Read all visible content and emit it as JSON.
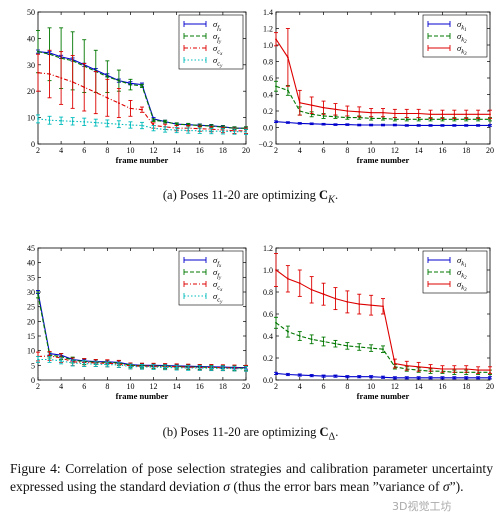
{
  "chart_data": [
    {
      "type": "line",
      "panel": "a-left",
      "xlabel": "frame number",
      "ylabel": "",
      "xlim": [
        2,
        20
      ],
      "ylim": [
        0,
        50
      ],
      "xticks": [
        2,
        4,
        6,
        8,
        10,
        12,
        14,
        16,
        18,
        20
      ],
      "yticks": [
        0,
        10,
        20,
        30,
        40,
        50
      ],
      "legend_position": "top-right",
      "x": [
        2,
        3,
        4,
        5,
        6,
        7,
        8,
        9,
        10,
        11,
        12,
        13,
        14,
        15,
        16,
        17,
        18,
        19,
        20
      ],
      "series": [
        {
          "name": "σ_fx",
          "legend_main": "σ",
          "legend_sub": "f",
          "legend_subsub": "x",
          "color": "#0000cc",
          "style": "solid",
          "values": [
            35,
            34.5,
            33,
            32,
            30,
            28,
            26,
            24,
            23,
            22.5,
            9.5,
            8.5,
            7.5,
            7.3,
            7.1,
            6.9,
            6.5,
            6,
            6
          ],
          "errors": [
            0.6,
            0.6,
            0.6,
            0.6,
            0.6,
            0.6,
            0.6,
            0.6,
            0.6,
            0.6,
            0.5,
            0.5,
            0.5,
            0.5,
            0.5,
            0.5,
            0.5,
            0.5,
            0.5
          ]
        },
        {
          "name": "σ_fy",
          "legend_main": "σ",
          "legend_sub": "f",
          "legend_subsub": "y",
          "color": "#007700",
          "style": "dashed",
          "values": [
            35,
            34,
            32.5,
            31.5,
            29.5,
            27.5,
            25.5,
            24,
            22.5,
            22,
            9,
            8.5,
            7.5,
            7.3,
            7,
            6.8,
            6.4,
            6,
            6
          ],
          "errors": [
            8,
            10,
            11.5,
            11,
            10,
            8,
            6,
            4,
            2,
            0.6,
            0.5,
            0.5,
            0.5,
            0.5,
            0.5,
            0.5,
            0.5,
            0.5,
            0.5
          ]
        },
        {
          "name": "σ_cx",
          "legend_main": "σ",
          "legend_sub": "c",
          "legend_subsub": "x",
          "color": "#dd0000",
          "style": "dashdot",
          "values": [
            27,
            26.5,
            25,
            23.5,
            21.5,
            19.5,
            17.5,
            15.5,
            13.5,
            13,
            7,
            6.5,
            6,
            6,
            5.8,
            5.6,
            5.3,
            5,
            5
          ],
          "errors": [
            7,
            9,
            10,
            10,
            9,
            8,
            7,
            5.5,
            3,
            1,
            1,
            1,
            1,
            1,
            1,
            1,
            1,
            1,
            1
          ]
        },
        {
          "name": "σ_cy",
          "legend_main": "σ",
          "legend_sub": "c",
          "legend_subsub": "y",
          "color": "#00bbbb",
          "style": "dotted",
          "values": [
            9.5,
            9,
            8.8,
            8.6,
            8.4,
            8.1,
            7.8,
            7.5,
            7.2,
            7,
            6,
            5.5,
            5.3,
            5.1,
            5,
            4.9,
            4.8,
            4.7,
            4.6
          ],
          "errors": [
            1.5,
            1.5,
            1.4,
            1.4,
            1.4,
            1.3,
            1.3,
            1.3,
            1.2,
            1.2,
            1,
            1,
            1,
            1,
            1,
            1,
            1,
            1,
            1
          ]
        }
      ]
    },
    {
      "type": "line",
      "panel": "a-right",
      "xlabel": "frame number",
      "ylabel": "",
      "xlim": [
        2,
        20
      ],
      "ylim": [
        -0.2,
        1.4
      ],
      "xticks": [
        2,
        4,
        6,
        8,
        10,
        12,
        14,
        16,
        18,
        20
      ],
      "yticks": [
        -0.2,
        0,
        0.2,
        0.4,
        0.6,
        0.8,
        1,
        1.2,
        1.4
      ],
      "ytick_labels": [
        "−0.2",
        "0.0",
        "0.2",
        "0.4",
        "0.6",
        "0.8",
        "1.0",
        "1.2",
        "1.4"
      ],
      "legend_position": "top-right",
      "x": [
        2,
        3,
        4,
        5,
        6,
        7,
        8,
        9,
        10,
        11,
        12,
        13,
        14,
        15,
        16,
        17,
        18,
        19,
        20
      ],
      "series": [
        {
          "name": "σ_k1",
          "legend_main": "σ",
          "legend_sub": "k",
          "legend_subsub": "1",
          "color": "#0000cc",
          "style": "solid",
          "values": [
            0.07,
            0.06,
            0.05,
            0.045,
            0.04,
            0.035,
            0.035,
            0.03,
            0.03,
            0.03,
            0.03,
            0.025,
            0.025,
            0.025,
            0.025,
            0.025,
            0.025,
            0.025,
            0.025
          ],
          "errors": [
            0.01,
            0.01,
            0.01,
            0.01,
            0.01,
            0.01,
            0.01,
            0.01,
            0.01,
            0.01,
            0.01,
            0.01,
            0.01,
            0.01,
            0.01,
            0.01,
            0.01,
            0.01,
            0.01
          ]
        },
        {
          "name": "σ_k2",
          "legend_main": "σ",
          "legend_sub": "k",
          "legend_subsub": "2",
          "color": "#007700",
          "style": "dashed",
          "values": [
            0.5,
            0.45,
            0.2,
            0.16,
            0.14,
            0.13,
            0.12,
            0.12,
            0.11,
            0.11,
            0.1,
            0.1,
            0.1,
            0.1,
            0.1,
            0.1,
            0.1,
            0.1,
            0.1
          ],
          "errors": [
            0.06,
            0.06,
            0.05,
            0.03,
            0.03,
            0.02,
            0.02,
            0.02,
            0.02,
            0.02,
            0.02,
            0.02,
            0.02,
            0.02,
            0.02,
            0.02,
            0.02,
            0.02,
            0.02
          ]
        },
        {
          "name": "σ_k3",
          "legend_main": "σ",
          "legend_sub": "k",
          "legend_subsub": "3",
          "color": "#dd0000",
          "style": "solid",
          "values": [
            1.07,
            0.85,
            0.3,
            0.27,
            0.24,
            0.22,
            0.2,
            0.19,
            0.18,
            0.18,
            0.17,
            0.17,
            0.17,
            0.16,
            0.16,
            0.16,
            0.16,
            0.16,
            0.16
          ],
          "errors": [
            0.08,
            0.35,
            0.15,
            0.1,
            0.08,
            0.07,
            0.06,
            0.06,
            0.05,
            0.05,
            0.05,
            0.05,
            0.05,
            0.05,
            0.05,
            0.05,
            0.05,
            0.05,
            0.05
          ]
        }
      ]
    },
    {
      "type": "line",
      "panel": "b-left",
      "xlabel": "frame number",
      "ylabel": "",
      "xlim": [
        2,
        20
      ],
      "ylim": [
        0,
        45
      ],
      "xticks": [
        2,
        4,
        6,
        8,
        10,
        12,
        14,
        16,
        18,
        20
      ],
      "yticks": [
        0,
        5,
        10,
        15,
        20,
        25,
        30,
        35,
        40,
        45
      ],
      "legend_position": "top-right",
      "x": [
        2,
        3,
        4,
        5,
        6,
        7,
        8,
        9,
        10,
        11,
        12,
        13,
        14,
        15,
        16,
        17,
        18,
        19,
        20
      ],
      "series": [
        {
          "name": "σ_fx",
          "legend_main": "σ",
          "legend_sub": "f",
          "legend_subsub": "x",
          "color": "#0000cc",
          "style": "solid",
          "values": [
            30,
            9,
            8.5,
            7,
            6.5,
            6.3,
            6.2,
            6,
            5.2,
            5,
            5,
            4.9,
            4.8,
            4.7,
            4.6,
            4.5,
            4.4,
            4.3,
            4.2
          ],
          "errors": [
            0.5,
            0.5,
            0.5,
            0.5,
            0.5,
            0.5,
            0.5,
            0.5,
            0.5,
            0.5,
            0.5,
            0.5,
            0.5,
            0.5,
            0.5,
            0.5,
            0.5,
            0.5,
            0.5
          ]
        },
        {
          "name": "σ_fy",
          "legend_main": "σ",
          "legend_sub": "f",
          "legend_subsub": "y",
          "color": "#007700",
          "style": "dashed",
          "values": [
            29,
            8.5,
            8,
            6.8,
            6.3,
            6.1,
            6,
            5.8,
            5,
            4.9,
            4.8,
            4.7,
            4.6,
            4.5,
            4.4,
            4.3,
            4.2,
            4.1,
            4
          ],
          "errors": [
            1,
            1,
            1,
            1,
            1,
            0.8,
            0.8,
            0.8,
            0.8,
            0.8,
            0.8,
            0.8,
            0.8,
            0.8,
            0.8,
            0.8,
            0.8,
            0.8,
            0.8
          ]
        },
        {
          "name": "σ_cx",
          "legend_main": "σ",
          "legend_sub": "c",
          "legend_subsub": "x",
          "color": "#dd0000",
          "style": "dashdot",
          "values": [
            8,
            8.2,
            7.5,
            6.2,
            6,
            5.8,
            5.7,
            5.5,
            4.8,
            4.7,
            4.7,
            4.6,
            4.5,
            4.4,
            4.3,
            4.3,
            4.2,
            4.1,
            4
          ],
          "errors": [
            1.5,
            1.5,
            1.5,
            1.3,
            1.3,
            1.2,
            1.2,
            1.2,
            1,
            1,
            1,
            1,
            1,
            1,
            1,
            1,
            1,
            1,
            1
          ]
        },
        {
          "name": "σ_cy",
          "legend_main": "σ",
          "legend_sub": "c",
          "legend_subsub": "y",
          "color": "#00bbbb",
          "style": "dotted",
          "values": [
            7,
            7,
            6.5,
            5.8,
            5.6,
            5.4,
            5.3,
            5.1,
            4.6,
            4.5,
            4.4,
            4.3,
            4.2,
            4.1,
            4.1,
            4,
            4,
            3.9,
            3.8
          ],
          "errors": [
            1,
            1,
            1,
            1,
            1,
            0.8,
            0.8,
            0.8,
            0.8,
            0.8,
            0.8,
            0.8,
            0.8,
            0.8,
            0.8,
            0.8,
            0.8,
            0.8,
            0.8
          ]
        }
      ]
    },
    {
      "type": "line",
      "panel": "b-right",
      "xlabel": "frame number",
      "ylabel": "",
      "xlim": [
        2,
        20
      ],
      "ylim": [
        0,
        1.2
      ],
      "xticks": [
        2,
        4,
        6,
        8,
        10,
        12,
        14,
        16,
        18,
        20
      ],
      "yticks": [
        0,
        0.2,
        0.4,
        0.6,
        0.8,
        1,
        1.2
      ],
      "ytick_labels": [
        "0.0",
        "0.2",
        "0.4",
        "0.6",
        "0.8",
        "1.0",
        "1.2"
      ],
      "legend_position": "top-right",
      "x": [
        2,
        3,
        4,
        5,
        6,
        7,
        8,
        9,
        10,
        11,
        12,
        13,
        14,
        15,
        16,
        17,
        18,
        19,
        20
      ],
      "series": [
        {
          "name": "σ_k1",
          "legend_main": "σ",
          "legend_sub": "k",
          "legend_subsub": "1",
          "color": "#0000cc",
          "style": "solid",
          "values": [
            0.06,
            0.05,
            0.045,
            0.04,
            0.035,
            0.035,
            0.03,
            0.03,
            0.03,
            0.025,
            0.02,
            0.02,
            0.02,
            0.02,
            0.02,
            0.02,
            0.02,
            0.02,
            0.02
          ],
          "errors": [
            0.01,
            0.01,
            0.01,
            0.01,
            0.01,
            0.01,
            0.01,
            0.01,
            0.01,
            0.01,
            0.01,
            0.01,
            0.01,
            0.01,
            0.01,
            0.01,
            0.01,
            0.01,
            0.01
          ]
        },
        {
          "name": "σ_k2",
          "legend_main": "σ",
          "legend_sub": "k",
          "legend_subsub": "2",
          "color": "#007700",
          "style": "dashed",
          "values": [
            0.52,
            0.44,
            0.4,
            0.37,
            0.35,
            0.33,
            0.31,
            0.3,
            0.29,
            0.28,
            0.12,
            0.1,
            0.09,
            0.08,
            0.08,
            0.07,
            0.07,
            0.07,
            0.07
          ],
          "errors": [
            0.05,
            0.05,
            0.04,
            0.04,
            0.04,
            0.03,
            0.03,
            0.03,
            0.03,
            0.03,
            0.02,
            0.02,
            0.02,
            0.02,
            0.02,
            0.02,
            0.02,
            0.02,
            0.02
          ]
        },
        {
          "name": "σ_k3",
          "legend_main": "σ",
          "legend_sub": "k",
          "legend_subsub": "3",
          "color": "#dd0000",
          "style": "solid",
          "values": [
            1,
            0.92,
            0.88,
            0.82,
            0.78,
            0.74,
            0.71,
            0.69,
            0.68,
            0.67,
            0.15,
            0.13,
            0.12,
            0.11,
            0.1,
            0.1,
            0.1,
            0.09,
            0.09
          ],
          "errors": [
            0.15,
            0.12,
            0.12,
            0.12,
            0.1,
            0.1,
            0.1,
            0.09,
            0.09,
            0.07,
            0.04,
            0.04,
            0.04,
            0.03,
            0.03,
            0.03,
            0.03,
            0.03,
            0.03
          ]
        }
      ]
    }
  ],
  "captions": {
    "a_prefix": "(a) Poses 11-20 are optimizing ",
    "a_symbol": "C",
    "a_sub": "K",
    "a_suffix": ".",
    "b_prefix": "(b) Poses 11-20 are optimizing ",
    "b_symbol": "C",
    "b_sub": "Δ",
    "b_suffix": ".",
    "figure_main": "Figure 4: Correlation of pose selection strategies and calibration parameter uncertainty expressed using the standard deviation ",
    "figure_sigma": "σ",
    "figure_rest": " (thus the error bars mean ”variance of ",
    "figure_sigma2": "σ",
    "figure_end": "”).",
    "watermark": "3D视觉工坊"
  }
}
